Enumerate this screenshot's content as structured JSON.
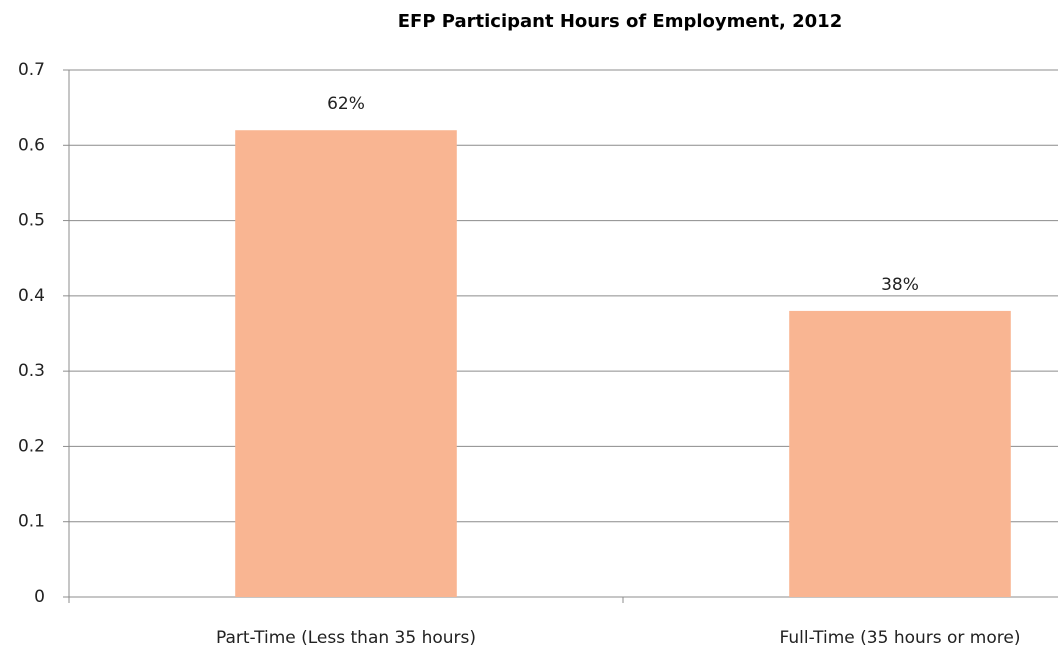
{
  "chart_data": {
    "type": "bar",
    "title": "EFP Participant Hours of Employment, 2012",
    "categories": [
      "Part-Time (Less than 35 hours)",
      "Full-Time (35 hours or more)"
    ],
    "values": [
      0.62,
      0.38
    ],
    "value_labels": [
      "62%",
      "38%"
    ],
    "color": "#f9b592",
    "ylim": [
      0,
      0.7
    ],
    "yticks": [
      0,
      0.1,
      0.2,
      0.3,
      0.4,
      0.5,
      0.6,
      0.7
    ],
    "grid": true
  }
}
